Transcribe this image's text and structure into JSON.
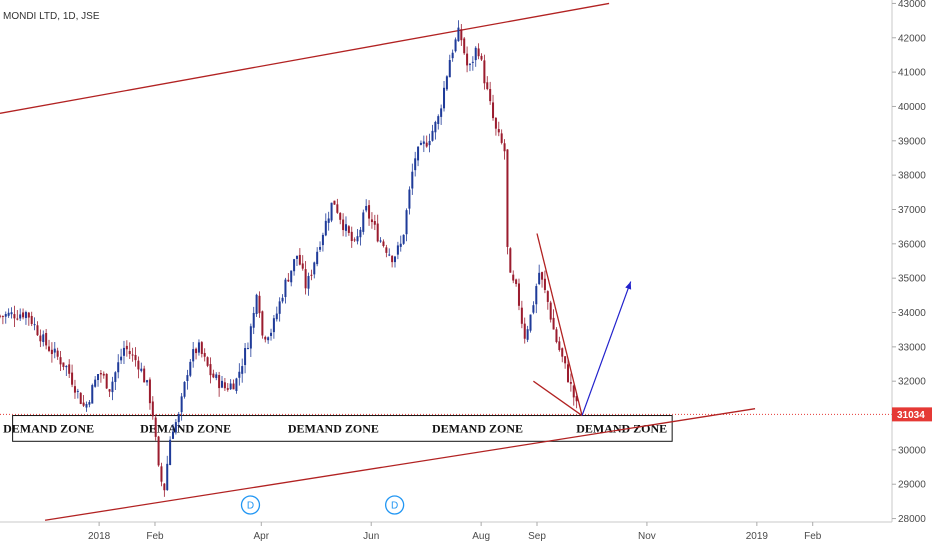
{
  "chart_data": {
    "type": "candlestick",
    "title": "MONDI LTD, 1D, JSE",
    "y_ticks": [
      28000,
      29000,
      30000,
      31000,
      32000,
      33000,
      34000,
      35000,
      36000,
      37000,
      38000,
      39000,
      40000,
      41000,
      42000,
      43000
    ],
    "ylim": [
      27900,
      43100
    ],
    "x_ticks": [
      {
        "label": "2018",
        "day": 0
      },
      {
        "label": "Feb",
        "day": 31
      },
      {
        "label": "Apr",
        "day": 90
      },
      {
        "label": "Jun",
        "day": 151
      },
      {
        "label": "Aug",
        "day": 212
      },
      {
        "label": "Sep",
        "day": 243
      },
      {
        "label": "Nov",
        "day": 304
      },
      {
        "label": "2019",
        "day": 365
      },
      {
        "label": "Feb",
        "day": 396
      }
    ],
    "xlim": [
      -55,
      440
    ],
    "last_price": "31034",
    "last_price_value": 31034,
    "colors": {
      "up": "#1f3b99",
      "down": "#9b1c2e",
      "trend": "#b22222",
      "arrow": "#2222cc",
      "price_tag": "#e53935",
      "event": "#2196f3"
    },
    "anchors": [
      {
        "day": -55,
        "close": 33900
      },
      {
        "day": -40,
        "close": 34000
      },
      {
        "day": -30,
        "close": 33100
      },
      {
        "day": -18,
        "close": 32400
      },
      {
        "day": -8,
        "close": 31200
      },
      {
        "day": 0,
        "close": 32300
      },
      {
        "day": 6,
        "close": 31800
      },
      {
        "day": 14,
        "close": 33000
      },
      {
        "day": 22,
        "close": 32500
      },
      {
        "day": 27,
        "close": 31800
      },
      {
        "day": 30,
        "close": 31000
      },
      {
        "day": 33,
        "close": 29400
      },
      {
        "day": 36,
        "close": 28800
      },
      {
        "day": 40,
        "close": 30600
      },
      {
        "day": 44,
        "close": 30900
      },
      {
        "day": 50,
        "close": 32600
      },
      {
        "day": 55,
        "close": 33000
      },
      {
        "day": 62,
        "close": 32200
      },
      {
        "day": 70,
        "close": 31800
      },
      {
        "day": 76,
        "close": 32000
      },
      {
        "day": 82,
        "close": 33000
      },
      {
        "day": 86,
        "close": 34000
      },
      {
        "day": 88,
        "close": 35000
      },
      {
        "day": 90,
        "close": 33300
      },
      {
        "day": 96,
        "close": 33500
      },
      {
        "day": 103,
        "close": 34800
      },
      {
        "day": 110,
        "close": 35700
      },
      {
        "day": 115,
        "close": 34700
      },
      {
        "day": 122,
        "close": 36000
      },
      {
        "day": 130,
        "close": 37300
      },
      {
        "day": 136,
        "close": 36500
      },
      {
        "day": 142,
        "close": 35900
      },
      {
        "day": 148,
        "close": 37000
      },
      {
        "day": 155,
        "close": 36200
      },
      {
        "day": 163,
        "close": 35600
      },
      {
        "day": 168,
        "close": 36000
      },
      {
        "day": 175,
        "close": 38500
      },
      {
        "day": 182,
        "close": 39000
      },
      {
        "day": 188,
        "close": 39600
      },
      {
        "day": 195,
        "close": 41500
      },
      {
        "day": 200,
        "close": 42200
      },
      {
        "day": 205,
        "close": 41000
      },
      {
        "day": 210,
        "close": 41800
      },
      {
        "day": 215,
        "close": 40500
      },
      {
        "day": 220,
        "close": 39300
      },
      {
        "day": 225,
        "close": 38700
      },
      {
        "day": 227,
        "close": 35100
      },
      {
        "day": 232,
        "close": 34600
      },
      {
        "day": 236,
        "close": 33300
      },
      {
        "day": 240,
        "close": 34000
      },
      {
        "day": 244,
        "close": 35200
      },
      {
        "day": 249,
        "close": 34300
      },
      {
        "day": 253,
        "close": 33300
      },
      {
        "day": 258,
        "close": 32500
      },
      {
        "day": 262,
        "close": 31800
      },
      {
        "day": 266,
        "close": 31100
      }
    ],
    "zone": {
      "day_start": -48,
      "day_end": 318,
      "price_low": 30250,
      "price_high": 31000
    },
    "zone_labels": [
      {
        "text": "DEMAND ZONE",
        "day": -28
      },
      {
        "text": "DEMAND ZONE",
        "day": 48
      },
      {
        "text": "DEMAND ZONE",
        "day": 130
      },
      {
        "text": "DEMAND ZONE",
        "day": 210
      },
      {
        "text": "DEMAND ZONE",
        "day": 290
      }
    ],
    "trendlines": [
      {
        "from": {
          "day": -55,
          "price": 39800
        },
        "to": {
          "day": 283,
          "price": 43000
        }
      },
      {
        "from": {
          "day": -30,
          "price": 27950
        },
        "to": {
          "day": 364,
          "price": 31200
        }
      },
      {
        "from": {
          "day": 243,
          "price": 36300
        },
        "to": {
          "day": 268,
          "price": 31000
        }
      },
      {
        "from": {
          "day": 241,
          "price": 32000
        },
        "to": {
          "day": 268,
          "price": 31000
        }
      }
    ],
    "projection": {
      "from": {
        "day": 268,
        "price": 31000
      },
      "to": {
        "day": 295,
        "price": 34900
      }
    },
    "events": [
      {
        "label": "D",
        "day": 84
      },
      {
        "label": "D",
        "day": 164
      }
    ]
  }
}
